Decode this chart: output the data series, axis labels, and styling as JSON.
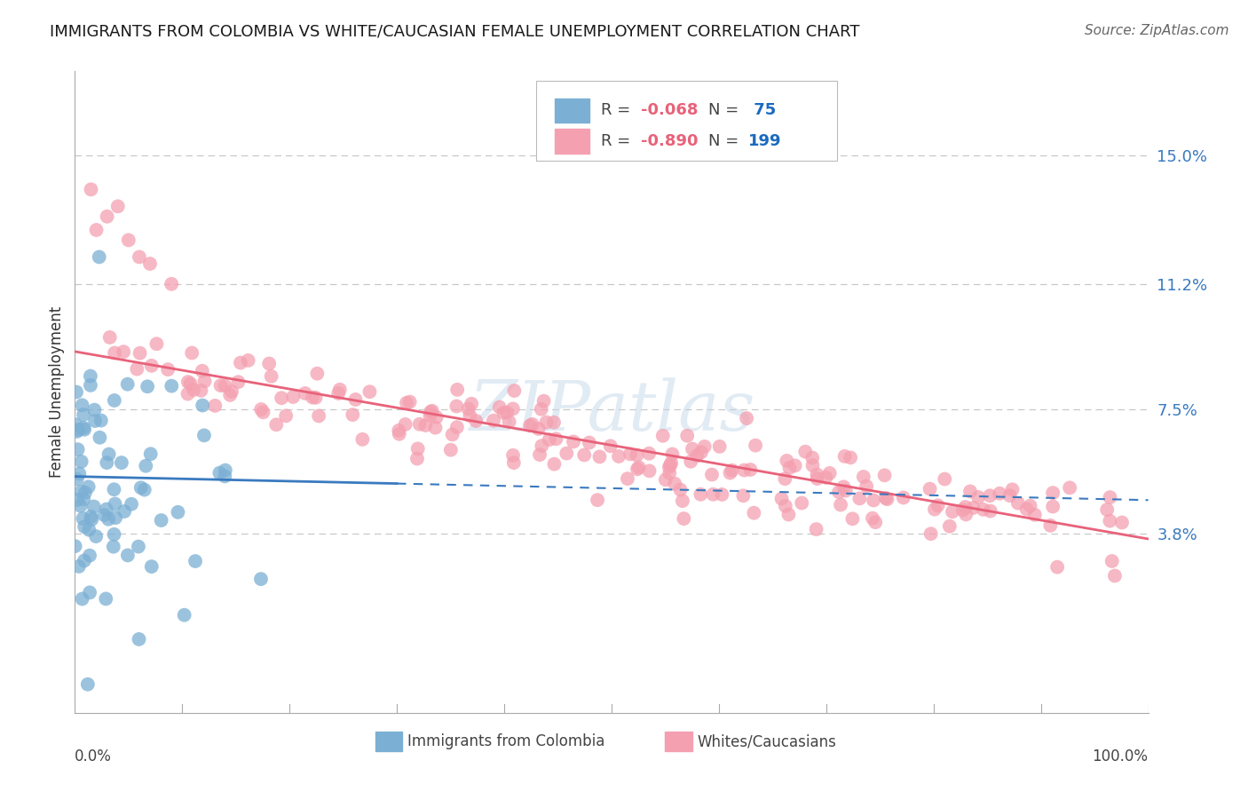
{
  "title": "IMMIGRANTS FROM COLOMBIA VS WHITE/CAUCASIAN FEMALE UNEMPLOYMENT CORRELATION CHART",
  "source": "Source: ZipAtlas.com",
  "ylabel": "Female Unemployment",
  "yticks": [
    3.8,
    7.5,
    11.2,
    15.0
  ],
  "ytick_labels": [
    "3.8%",
    "7.5%",
    "11.2%",
    "15.0%"
  ],
  "xlim": [
    0,
    100
  ],
  "ylim": [
    -1.5,
    17.5
  ],
  "watermark": "ZIPatlas",
  "blue_color": "#7bafd4",
  "pink_color": "#f4a0b0",
  "blue_line_color": "#3a7abf",
  "pink_line_color": "#e8627a",
  "background_color": "#ffffff",
  "grid_color": "#c8c8c8",
  "legend_r_color": "#e8627a",
  "legend_n_color": "#1a6abf",
  "blue_n": 75,
  "pink_n": 199,
  "blue_seed": 42,
  "pink_seed": 123,
  "pink_line_y0": 9.2,
  "pink_line_y1": 3.65,
  "blue_line_y0": 5.5,
  "blue_line_y1": 4.8,
  "blue_solid_end": 30
}
